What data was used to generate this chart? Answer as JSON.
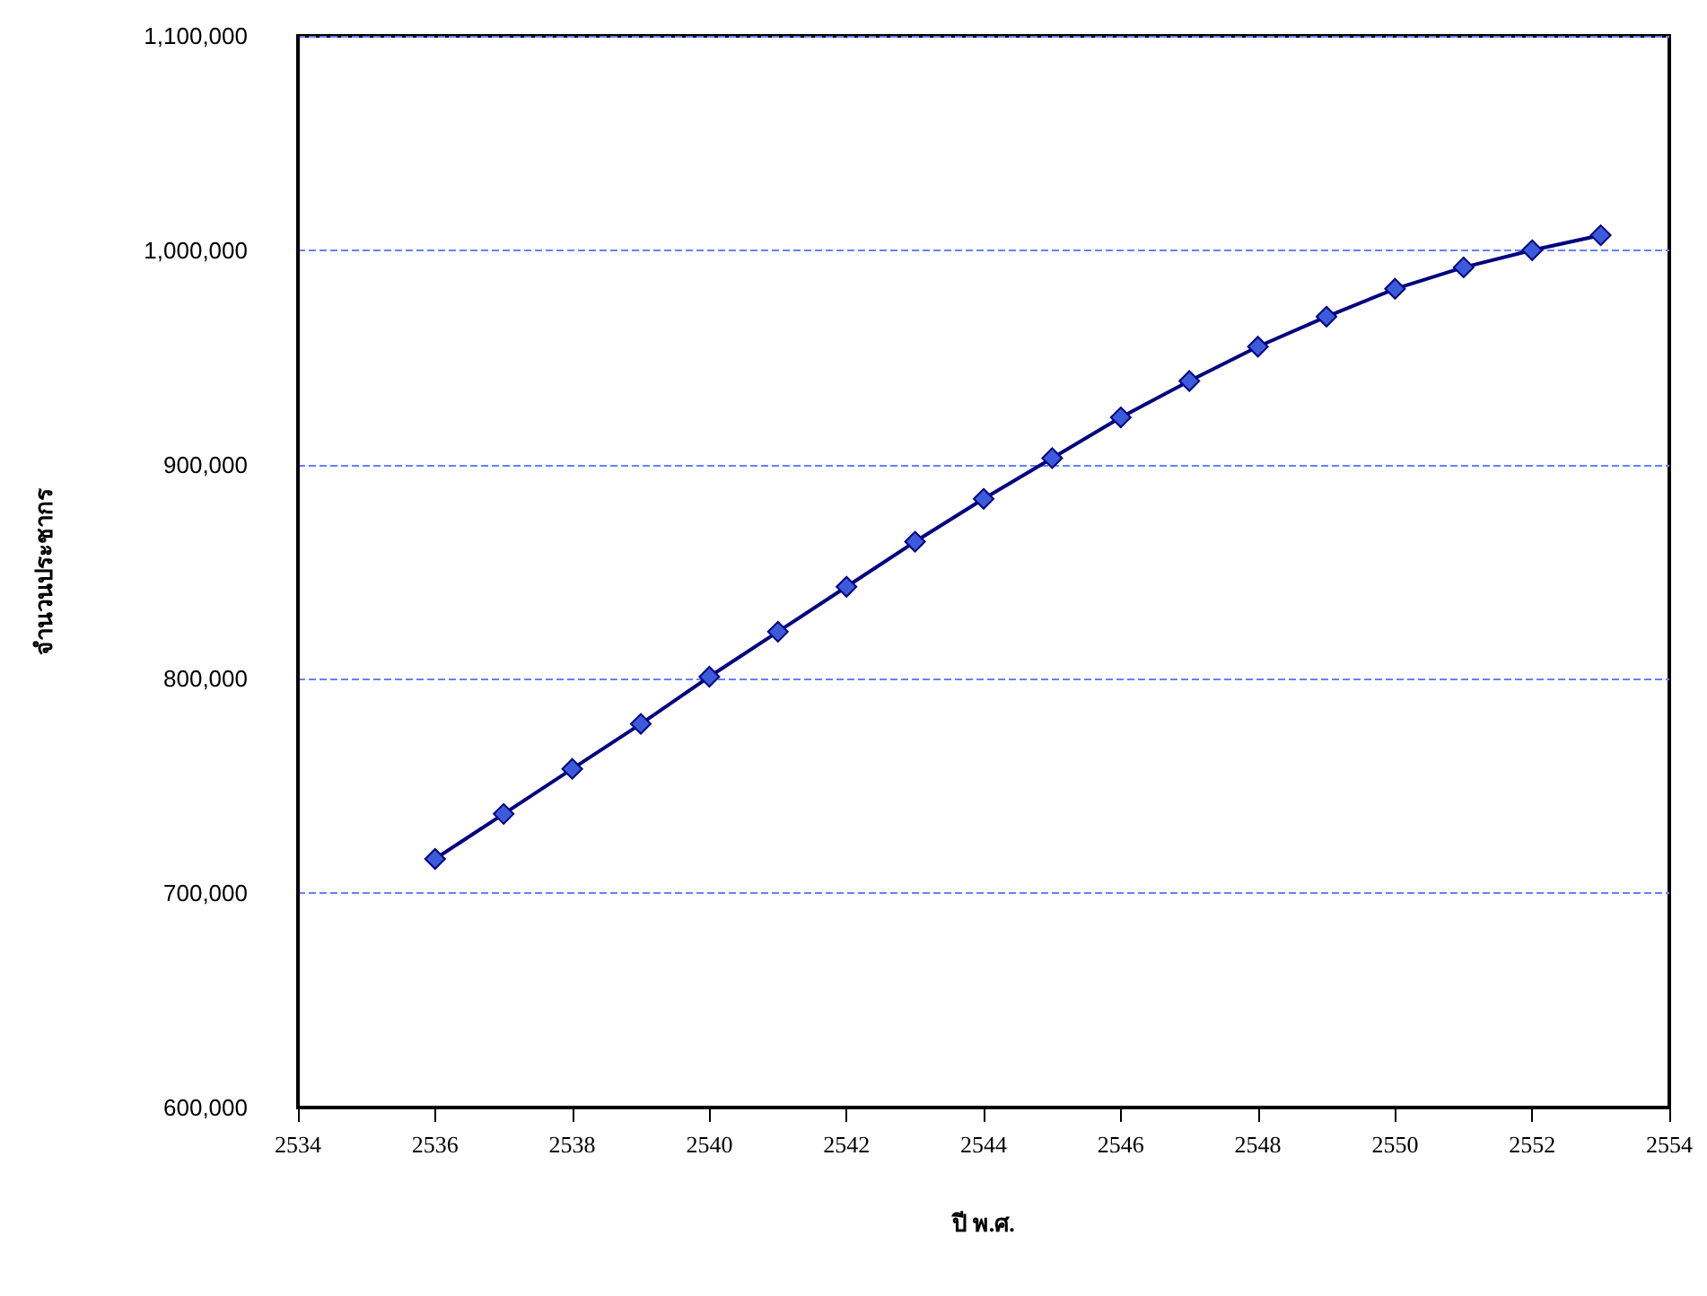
{
  "chart_data": {
    "type": "line",
    "xlabel": "ปี พ.ศ.",
    "ylabel": "จำนวนประชากร",
    "x": [
      2536,
      2537,
      2538,
      2539,
      2540,
      2541,
      2542,
      2543,
      2544,
      2545,
      2546,
      2547,
      2548,
      2549,
      2550,
      2551,
      2552,
      2553
    ],
    "series": [
      {
        "color": "#000080",
        "values": [
          716000,
          737000,
          758000,
          779000,
          801000,
          822000,
          843000,
          864000,
          884000,
          903000,
          922000,
          939000,
          955000,
          969000,
          982000,
          992000,
          1000000,
          1007000
        ]
      }
    ],
    "xlim": [
      2534,
      2554
    ],
    "xticks": [
      2534,
      2536,
      2538,
      2540,
      2542,
      2544,
      2546,
      2548,
      2550,
      2552,
      2554
    ],
    "ylim": [
      600000,
      1100000
    ],
    "yticks": [
      {
        "value": 600000,
        "label": "600,000"
      },
      {
        "value": 700000,
        "label": "700,000"
      },
      {
        "value": 800000,
        "label": "800,000"
      },
      {
        "value": 900000,
        "label": "900,000"
      },
      {
        "value": 1000000,
        "label": "1,000,000"
      },
      {
        "value": 1100000,
        "label": "1,100,000"
      }
    ],
    "grid": "y",
    "marker": "diamond",
    "line_style": "solid"
  }
}
